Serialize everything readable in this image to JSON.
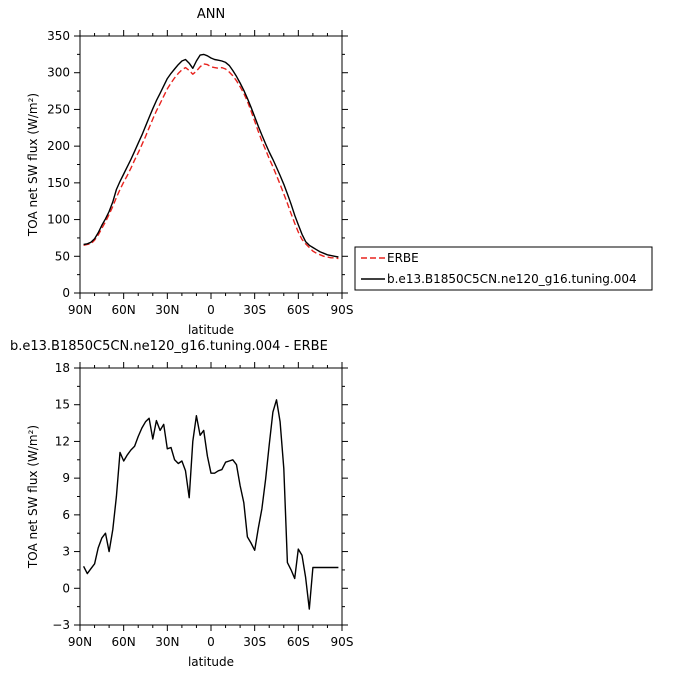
{
  "chart_data": [
    {
      "type": "line",
      "title": "ANN",
      "xlabel": "latitude",
      "ylabel": "TOA net SW flux (W/m²)",
      "xlim": [
        -90,
        90
      ],
      "ylim": [
        0,
        350
      ],
      "x_ticks": [
        -90,
        -60,
        -30,
        0,
        30,
        60,
        90
      ],
      "x_tick_labels": [
        "90N",
        "60N",
        "30N",
        "0",
        "30S",
        "60S",
        "90S"
      ],
      "y_ticks": [
        0,
        50,
        100,
        150,
        200,
        250,
        300,
        350
      ],
      "y_tick_labels": [
        "0",
        "50",
        "100",
        "150",
        "200",
        "250",
        "300",
        "350"
      ],
      "legend_placement": "outside-right",
      "x": [
        -87.5,
        -85,
        -82.5,
        -80,
        -77.5,
        -75,
        -72.5,
        -70,
        -67.5,
        -65,
        -62.5,
        -60,
        -57.5,
        -55,
        -52.5,
        -50,
        -47.5,
        -45,
        -42.5,
        -40,
        -37.5,
        -35,
        -32.5,
        -30,
        -27.5,
        -25,
        -22.5,
        -20,
        -17.5,
        -15,
        -12.5,
        -10,
        -7.5,
        -5,
        -2.5,
        0,
        2.5,
        5,
        7.5,
        10,
        12.5,
        15,
        17.5,
        20,
        22.5,
        25,
        27.5,
        30,
        32.5,
        35,
        37.5,
        40,
        42.5,
        45,
        47.5,
        50,
        52.5,
        55,
        57.5,
        60,
        62.5,
        65,
        67.5,
        70,
        72.5,
        75,
        77.5,
        80,
        82.5,
        85,
        87.5
      ],
      "series": [
        {
          "name": "ERBE",
          "color": "#e8231e",
          "dash": "dashed",
          "values": [
            65,
            66,
            67,
            72,
            79,
            88,
            97,
            107,
            118,
            130,
            141,
            151,
            160,
            170,
            181,
            191,
            202,
            213,
            225,
            237,
            248,
            258,
            268,
            278,
            286,
            293,
            299,
            304,
            307,
            303,
            298,
            302,
            308,
            312,
            311,
            308,
            307,
            306,
            307,
            305,
            301,
            296,
            289,
            281,
            272,
            261,
            248,
            234,
            220,
            207,
            195,
            183,
            172,
            160,
            148,
            135,
            122,
            108,
            95,
            83,
            73,
            67,
            62,
            57,
            54,
            52,
            50,
            49,
            48,
            48,
            47
          ]
        },
        {
          "name": "b.e13.B1850C5CN.ne120_g16.tuning.004",
          "color": "#000000",
          "dash": "solid",
          "values": [
            66,
            67,
            69,
            74,
            82,
            92,
            101,
            111,
            124,
            141,
            152,
            162,
            172,
            182,
            193,
            204,
            215,
            227,
            239,
            251,
            262,
            272,
            282,
            292,
            299,
            305,
            311,
            316,
            318,
            313,
            306,
            316,
            324,
            325,
            323,
            320,
            318,
            317,
            316,
            314,
            310,
            303,
            295,
            286,
            276,
            265,
            253,
            240,
            227,
            215,
            203,
            192,
            182,
            171,
            160,
            148,
            135,
            121,
            106,
            93,
            80,
            70,
            65,
            62,
            59,
            56,
            54,
            52,
            51,
            50,
            49
          ]
        }
      ]
    },
    {
      "type": "line",
      "title": "b.e13.B1850C5CN.ne120_g16.tuning.004 - ERBE",
      "xlabel": "latitude",
      "ylabel": "TOA net SW flux (W/m²)",
      "xlim": [
        -90,
        90
      ],
      "ylim": [
        -3,
        18
      ],
      "x_ticks": [
        -90,
        -60,
        -30,
        0,
        30,
        60,
        90
      ],
      "x_tick_labels": [
        "90N",
        "60N",
        "30N",
        "0",
        "30S",
        "60S",
        "90S"
      ],
      "y_ticks": [
        -3,
        0,
        3,
        6,
        9,
        12,
        15,
        18
      ],
      "y_tick_labels": [
        "−3",
        "0",
        "3",
        "6",
        "9",
        "12",
        "15",
        "18"
      ],
      "x": [
        -87.5,
        -85,
        -82.5,
        -80,
        -77.5,
        -75,
        -72.5,
        -70,
        -67.5,
        -65,
        -62.5,
        -60,
        -57.5,
        -55,
        -52.5,
        -50,
        -47.5,
        -45,
        -42.5,
        -40,
        -37.5,
        -35,
        -32.5,
        -30,
        -27.5,
        -25,
        -22.5,
        -20,
        -17.5,
        -15,
        -12.5,
        -10,
        -7.5,
        -5,
        -2.5,
        0,
        2.5,
        5,
        7.5,
        10,
        12.5,
        15,
        17.5,
        20,
        22.5,
        25,
        27.5,
        30,
        32.5,
        35,
        37.5,
        40,
        42.5,
        45,
        47.5,
        50,
        52.5,
        55,
        57.5,
        60,
        62.5,
        65,
        67.5,
        70,
        72.5,
        75,
        77.5,
        80,
        82.5,
        85,
        87.5
      ],
      "series": [
        {
          "name": "",
          "color": "#000000",
          "dash": "solid",
          "values": [
            1.8,
            1.2,
            1.6,
            2.0,
            3.3,
            4.1,
            4.5,
            3.0,
            4.8,
            7.5,
            11.1,
            10.4,
            10.9,
            11.3,
            11.6,
            12.4,
            13.1,
            13.6,
            13.9,
            12.2,
            13.7,
            12.9,
            13.4,
            11.4,
            11.5,
            10.5,
            10.2,
            10.4,
            9.6,
            7.4,
            12.0,
            14.1,
            12.5,
            12.9,
            10.8,
            9.4,
            9.4,
            9.6,
            9.7,
            10.3,
            10.4,
            10.5,
            10.1,
            8.4,
            7.0,
            4.2,
            3.7,
            3.1,
            4.9,
            6.5,
            8.9,
            11.7,
            14.4,
            15.4,
            13.6,
            9.8,
            2.1,
            1.5,
            0.8,
            3.2,
            2.7,
            0.9,
            -1.7,
            1.7,
            1.7,
            1.7,
            1.7,
            1.7,
            1.7,
            1.7,
            1.7
          ]
        }
      ]
    }
  ]
}
